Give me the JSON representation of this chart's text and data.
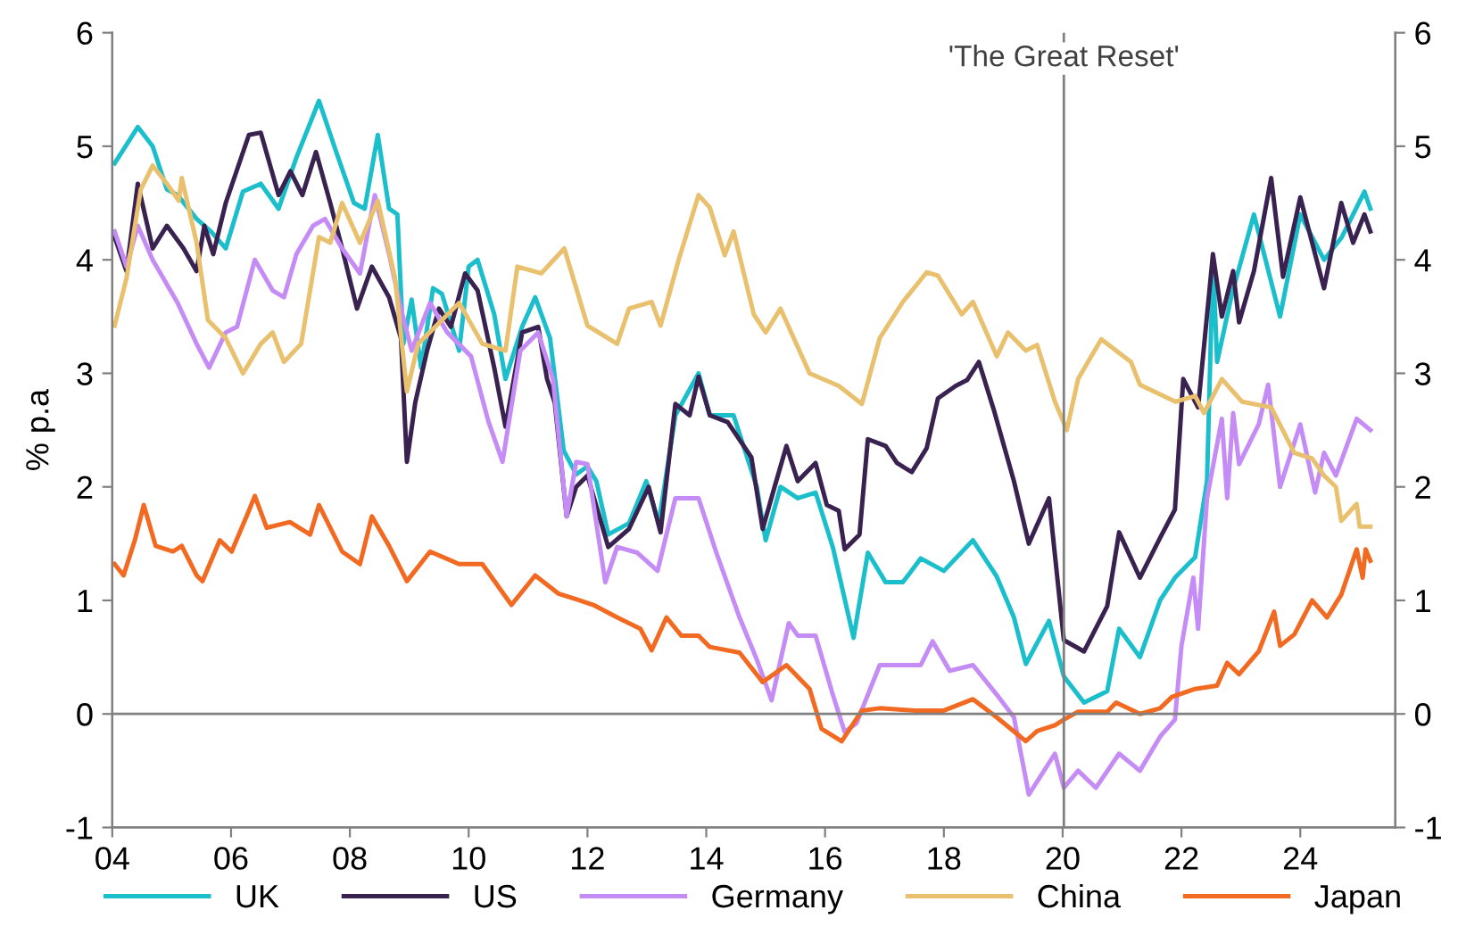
{
  "chart_data": {
    "type": "line",
    "ylabel": "% p.a",
    "xlim": [
      2004,
      2025.6
    ],
    "ylim": [
      -1,
      6
    ],
    "y2lim": [
      -1,
      6
    ],
    "xticks": [
      {
        "value": 2004,
        "label": "04"
      },
      {
        "value": 2006,
        "label": "06"
      },
      {
        "value": 2008,
        "label": "08"
      },
      {
        "value": 2010,
        "label": "10"
      },
      {
        "value": 2012,
        "label": "12"
      },
      {
        "value": 2014,
        "label": "14"
      },
      {
        "value": 2016,
        "label": "16"
      },
      {
        "value": 2018,
        "label": "18"
      },
      {
        "value": 2020,
        "label": "20"
      },
      {
        "value": 2022,
        "label": "22"
      },
      {
        "value": 2024,
        "label": "24"
      }
    ],
    "yticks": [
      -1,
      0,
      1,
      2,
      3,
      4,
      5,
      6
    ],
    "y2ticks": [
      -1,
      0,
      1,
      2,
      3,
      4,
      5,
      6
    ],
    "grid": false,
    "legend": "bottom",
    "marker": "none",
    "line_style": "solid",
    "ref_lines": [
      {
        "axis": "x",
        "value": 2020.02,
        "label": "'The Great Reset'",
        "color": "#808080"
      },
      {
        "axis": "y",
        "value": 0,
        "label": null,
        "color": "#808080"
      }
    ],
    "series": [
      {
        "name": "UK",
        "color": "#1bbfcc",
        "x": [
          2004.04,
          2004.43,
          2004.68,
          2004.92,
          2005.1,
          2005.42,
          2005.66,
          2005.91,
          2006.2,
          2006.5,
          2006.8,
          2007.1,
          2007.48,
          2007.77,
          2008.07,
          2008.25,
          2008.47,
          2008.66,
          2008.8,
          2008.9,
          2009.04,
          2009.2,
          2009.4,
          2009.55,
          2009.84,
          2010.0,
          2010.15,
          2010.43,
          2010.62,
          2010.9,
          2011.12,
          2011.37,
          2011.6,
          2011.81,
          2012.0,
          2012.15,
          2012.35,
          2012.7,
          2012.99,
          2013.2,
          2013.48,
          2013.87,
          2014.06,
          2014.46,
          2014.85,
          2015.0,
          2015.25,
          2015.54,
          2015.84,
          2016.13,
          2016.48,
          2016.72,
          2017.02,
          2017.31,
          2017.61,
          2018.0,
          2018.49,
          2018.89,
          2019.18,
          2019.38,
          2019.77,
          2020.02,
          2020.36,
          2020.75,
          2020.95,
          2021.3,
          2021.64,
          2021.89,
          2022.23,
          2022.43,
          2022.53,
          2022.6,
          2022.85,
          2023.22,
          2023.66,
          2024.0,
          2024.4,
          2024.7,
          2025.08,
          2025.18
        ],
        "values": [
          4.85,
          5.17,
          5.0,
          4.62,
          4.57,
          4.36,
          4.25,
          4.1,
          4.6,
          4.67,
          4.45,
          4.9,
          5.4,
          4.95,
          4.5,
          4.45,
          5.1,
          4.45,
          4.4,
          3.26,
          3.65,
          3.05,
          3.75,
          3.7,
          3.2,
          3.94,
          4.0,
          3.52,
          2.95,
          3.41,
          3.67,
          3.31,
          2.32,
          2.11,
          2.18,
          2.05,
          1.58,
          1.68,
          2.05,
          1.68,
          2.63,
          3.0,
          2.63,
          2.63,
          2.0,
          1.53,
          2.0,
          1.9,
          1.95,
          1.47,
          0.67,
          1.42,
          1.16,
          1.16,
          1.37,
          1.26,
          1.53,
          1.21,
          0.85,
          0.44,
          0.82,
          0.33,
          0.1,
          0.2,
          0.75,
          0.5,
          1.0,
          1.2,
          1.38,
          2.05,
          4.0,
          3.1,
          3.7,
          4.4,
          3.5,
          4.4,
          4.0,
          4.2,
          4.6,
          4.45
        ]
      },
      {
        "name": "US",
        "color": "#3a2250",
        "x": [
          2004.04,
          2004.24,
          2004.43,
          2004.68,
          2004.92,
          2005.2,
          2005.42,
          2005.55,
          2005.7,
          2005.91,
          2006.3,
          2006.5,
          2006.8,
          2007.0,
          2007.2,
          2007.43,
          2007.67,
          2007.87,
          2008.12,
          2008.37,
          2008.66,
          2008.86,
          2008.96,
          2009.1,
          2009.3,
          2009.5,
          2009.7,
          2009.94,
          2010.15,
          2010.43,
          2010.62,
          2010.9,
          2011.17,
          2011.32,
          2011.45,
          2011.65,
          2011.81,
          2012.0,
          2012.35,
          2012.7,
          2013.03,
          2013.23,
          2013.48,
          2013.72,
          2013.87,
          2014.06,
          2014.36,
          2014.76,
          2014.95,
          2015.15,
          2015.35,
          2015.54,
          2015.84,
          2016.03,
          2016.23,
          2016.33,
          2016.58,
          2016.72,
          2017.02,
          2017.21,
          2017.46,
          2017.71,
          2017.9,
          2018.2,
          2018.39,
          2018.59,
          2018.84,
          2019.18,
          2019.43,
          2019.77,
          2020.02,
          2020.36,
          2020.75,
          2020.95,
          2021.3,
          2021.64,
          2021.89,
          2022.03,
          2022.28,
          2022.53,
          2022.68,
          2022.87,
          2022.97,
          2023.22,
          2023.51,
          2023.71,
          2024.0,
          2024.4,
          2024.69,
          2024.89,
          2025.08,
          2025.18
        ],
        "values": [
          4.2,
          3.9,
          4.67,
          4.1,
          4.3,
          4.1,
          3.9,
          4.3,
          4.05,
          4.5,
          5.1,
          5.12,
          4.57,
          4.78,
          4.57,
          4.95,
          4.5,
          4.1,
          3.57,
          3.94,
          3.67,
          3.31,
          2.22,
          2.74,
          3.2,
          3.57,
          3.41,
          3.88,
          3.73,
          3.05,
          2.53,
          3.36,
          3.41,
          2.95,
          2.74,
          1.74,
          2.0,
          2.1,
          1.47,
          1.63,
          2.0,
          1.6,
          2.73,
          2.63,
          2.97,
          2.63,
          2.57,
          2.26,
          1.63,
          2.0,
          2.36,
          2.05,
          2.21,
          1.84,
          1.79,
          1.45,
          1.58,
          2.42,
          2.36,
          2.21,
          2.13,
          2.34,
          2.78,
          2.89,
          2.94,
          3.1,
          2.68,
          2.05,
          1.5,
          1.9,
          0.65,
          0.55,
          0.95,
          1.6,
          1.2,
          1.55,
          1.8,
          2.95,
          2.7,
          4.05,
          3.5,
          3.9,
          3.45,
          3.9,
          4.72,
          3.85,
          4.55,
          3.75,
          4.5,
          4.15,
          4.4,
          4.25
        ]
      },
      {
        "name": "Germany",
        "color": "#c58cf5",
        "x": [
          2004.04,
          2004.24,
          2004.43,
          2004.68,
          2005.1,
          2005.42,
          2005.63,
          2005.91,
          2006.1,
          2006.4,
          2006.7,
          2006.89,
          2007.1,
          2007.38,
          2007.58,
          2007.87,
          2008.17,
          2008.42,
          2008.66,
          2008.86,
          2009.04,
          2009.35,
          2009.64,
          2010.04,
          2010.33,
          2010.57,
          2010.87,
          2011.17,
          2011.42,
          2011.65,
          2011.81,
          2012.0,
          2012.3,
          2012.5,
          2012.84,
          2013.18,
          2013.48,
          2013.87,
          2014.17,
          2014.56,
          2014.85,
          2015.1,
          2015.39,
          2015.54,
          2015.84,
          2016.13,
          2016.33,
          2016.53,
          2016.92,
          2017.31,
          2017.61,
          2017.81,
          2018.1,
          2018.49,
          2018.89,
          2019.18,
          2019.43,
          2019.87,
          2020.02,
          2020.26,
          2020.56,
          2020.95,
          2021.3,
          2021.64,
          2021.89,
          2022.0,
          2022.2,
          2022.28,
          2022.43,
          2022.68,
          2022.77,
          2022.87,
          2022.97,
          2023.3,
          2023.46,
          2023.66,
          2024.0,
          2024.25,
          2024.4,
          2024.6,
          2024.95,
          2025.18
        ],
        "values": [
          4.25,
          3.94,
          4.3,
          4.0,
          3.62,
          3.26,
          3.05,
          3.36,
          3.41,
          4.0,
          3.73,
          3.67,
          4.05,
          4.3,
          4.36,
          4.1,
          3.88,
          4.57,
          4.05,
          3.57,
          3.2,
          3.62,
          3.36,
          3.15,
          2.58,
          2.22,
          3.2,
          3.36,
          2.95,
          1.74,
          2.22,
          2.2,
          1.16,
          1.47,
          1.42,
          1.26,
          1.9,
          1.9,
          1.42,
          0.85,
          0.48,
          0.12,
          0.8,
          0.69,
          0.69,
          0.17,
          -0.16,
          -0.08,
          0.43,
          0.43,
          0.43,
          0.64,
          0.38,
          0.43,
          0.17,
          -0.03,
          -0.71,
          -0.35,
          -0.65,
          -0.5,
          -0.65,
          -0.35,
          -0.5,
          -0.2,
          -0.05,
          0.6,
          1.2,
          0.75,
          1.9,
          2.6,
          1.9,
          2.65,
          2.2,
          2.55,
          2.9,
          2.0,
          2.55,
          1.95,
          2.3,
          2.1,
          2.6,
          2.5
        ]
      },
      {
        "name": "China",
        "color": "#e8c06e",
        "x": [
          2004.04,
          2004.24,
          2004.48,
          2004.68,
          2004.92,
          2005.12,
          2005.17,
          2005.42,
          2005.61,
          2005.91,
          2006.2,
          2006.5,
          2006.7,
          2006.89,
          2007.18,
          2007.48,
          2007.67,
          2007.87,
          2008.17,
          2008.47,
          2008.76,
          2008.96,
          2009.15,
          2009.55,
          2009.84,
          2010.23,
          2010.62,
          2010.82,
          2011.22,
          2011.61,
          2012.0,
          2012.5,
          2012.7,
          2013.08,
          2013.23,
          2013.53,
          2013.87,
          2014.06,
          2014.31,
          2014.46,
          2014.8,
          2015.0,
          2015.25,
          2015.74,
          2016.23,
          2016.62,
          2016.92,
          2017.31,
          2017.71,
          2017.9,
          2018.3,
          2018.49,
          2018.89,
          2019.08,
          2019.38,
          2019.57,
          2019.87,
          2020.07,
          2020.26,
          2020.65,
          2021.15,
          2021.3,
          2021.9,
          2022.23,
          2022.38,
          2022.68,
          2023.02,
          2023.51,
          2023.9,
          2024.2,
          2024.4,
          2024.6,
          2024.69,
          2024.95,
          2025.0,
          2025.18
        ],
        "values": [
          3.42,
          3.84,
          4.62,
          4.83,
          4.67,
          4.52,
          4.72,
          4.15,
          3.47,
          3.31,
          3.0,
          3.26,
          3.36,
          3.1,
          3.26,
          4.2,
          4.15,
          4.5,
          4.15,
          4.52,
          3.84,
          2.84,
          3.26,
          3.47,
          3.62,
          3.26,
          3.2,
          3.94,
          3.88,
          4.1,
          3.42,
          3.26,
          3.57,
          3.63,
          3.42,
          3.99,
          4.57,
          4.46,
          4.04,
          4.25,
          3.52,
          3.36,
          3.57,
          3.0,
          2.89,
          2.73,
          3.31,
          3.63,
          3.89,
          3.86,
          3.52,
          3.63,
          3.15,
          3.36,
          3.2,
          3.25,
          2.75,
          2.5,
          2.95,
          3.3,
          3.1,
          2.9,
          2.75,
          2.8,
          2.65,
          2.95,
          2.75,
          2.7,
          2.3,
          2.25,
          2.1,
          2.0,
          1.7,
          1.85,
          1.65,
          1.65
        ]
      },
      {
        "name": "Japan",
        "color": "#f26a21",
        "x": [
          2004.04,
          2004.19,
          2004.38,
          2004.53,
          2004.73,
          2005.02,
          2005.17,
          2005.42,
          2005.52,
          2005.81,
          2006.01,
          2006.3,
          2006.4,
          2006.6,
          2006.99,
          2007.33,
          2007.48,
          2007.87,
          2008.17,
          2008.37,
          2008.66,
          2008.96,
          2009.35,
          2009.84,
          2010.23,
          2010.72,
          2011.12,
          2011.51,
          2011.81,
          2012.1,
          2012.5,
          2012.89,
          2013.08,
          2013.33,
          2013.58,
          2013.87,
          2014.06,
          2014.56,
          2014.95,
          2015.35,
          2015.74,
          2015.94,
          2016.28,
          2016.62,
          2016.92,
          2017.51,
          2018.0,
          2018.49,
          2018.89,
          2019.38,
          2019.57,
          2019.87,
          2020.02,
          2020.26,
          2020.75,
          2020.9,
          2021.3,
          2021.64,
          2021.84,
          2022.23,
          2022.6,
          2022.77,
          2022.97,
          2023.3,
          2023.56,
          2023.66,
          2023.9,
          2024.2,
          2024.45,
          2024.69,
          2024.95,
          2025.05,
          2025.1,
          2025.18
        ],
        "values": [
          1.32,
          1.22,
          1.53,
          1.84,
          1.48,
          1.43,
          1.48,
          1.22,
          1.17,
          1.53,
          1.43,
          1.79,
          1.92,
          1.64,
          1.69,
          1.58,
          1.84,
          1.43,
          1.32,
          1.74,
          1.48,
          1.17,
          1.43,
          1.32,
          1.32,
          0.96,
          1.22,
          1.06,
          1.01,
          0.96,
          0.85,
          0.75,
          0.56,
          0.85,
          0.69,
          0.69,
          0.59,
          0.54,
          0.28,
          0.43,
          0.22,
          -0.13,
          -0.24,
          0.03,
          0.05,
          0.03,
          0.03,
          0.13,
          -0.03,
          -0.24,
          -0.15,
          -0.1,
          -0.05,
          0.02,
          0.02,
          0.1,
          0.0,
          0.05,
          0.15,
          0.22,
          0.25,
          0.45,
          0.35,
          0.55,
          0.9,
          0.6,
          0.7,
          1.0,
          0.85,
          1.05,
          1.45,
          1.2,
          1.45,
          1.35
        ]
      }
    ]
  }
}
